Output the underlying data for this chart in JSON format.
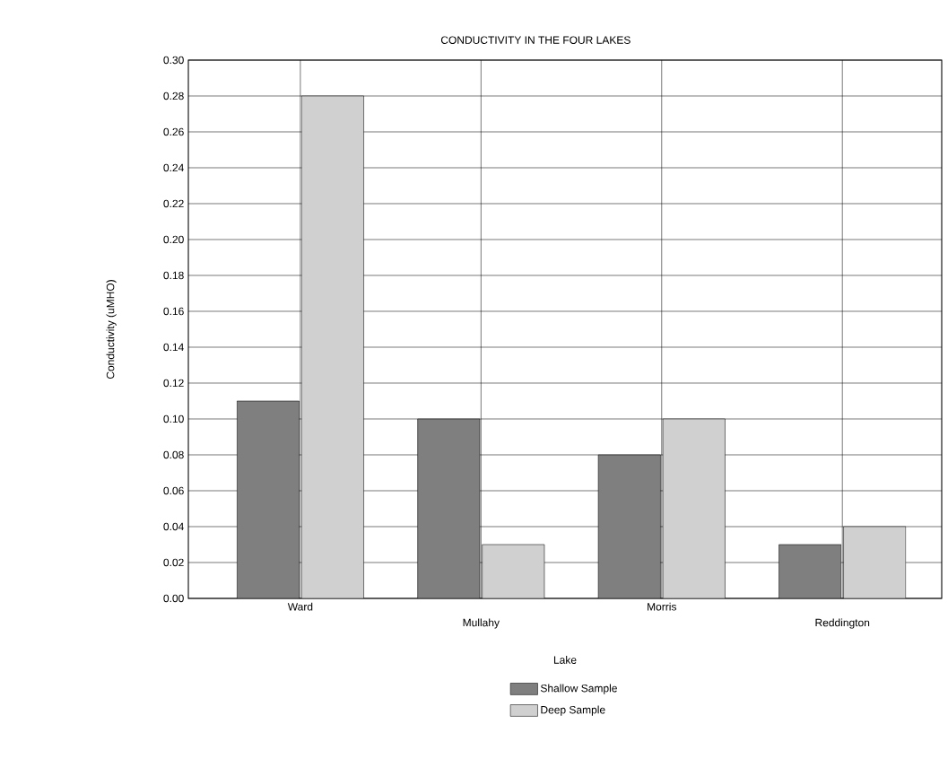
{
  "chart_data": {
    "type": "bar",
    "title": "CONDUCTIVITY IN THE FOUR LAKES",
    "xlabel": "Lake",
    "ylabel": "Conductivity (uMHO)",
    "categories": [
      "Ward",
      "Mullahy",
      "Morris",
      "Reddington"
    ],
    "series": [
      {
        "name": "Shallow Sample",
        "color": "#7f7f7f",
        "values": [
          0.11,
          0.1,
          0.08,
          0.03
        ]
      },
      {
        "name": "Deep Sample",
        "color": "#d0d0d0",
        "values": [
          0.28,
          0.03,
          0.1,
          0.04
        ]
      }
    ],
    "ylim": [
      0,
      0.3
    ],
    "yticks": [
      {
        "value": 0,
        "label": "0.00"
      },
      {
        "value": 0.02,
        "label": "0.02"
      },
      {
        "value": 0.04,
        "label": "0.04"
      },
      {
        "value": 0.06,
        "label": "0.06"
      },
      {
        "value": 0.08,
        "label": "0.08"
      },
      {
        "value": 0.1,
        "label": "0.10"
      },
      {
        "value": 0.12,
        "label": "0.12"
      },
      {
        "value": 0.14,
        "label": "0.14"
      },
      {
        "value": 0.16,
        "label": "0.16"
      },
      {
        "value": 0.18,
        "label": "0.18"
      },
      {
        "value": 0.2,
        "label": "0.20"
      },
      {
        "value": 0.22,
        "label": "0.22"
      },
      {
        "value": 0.24,
        "label": "0.24"
      },
      {
        "value": 0.26,
        "label": "0.26"
      },
      {
        "value": 0.28,
        "label": "0.28"
      },
      {
        "value": 0.3,
        "label": "0.30"
      }
    ],
    "grid": true,
    "legend": "bottom"
  }
}
